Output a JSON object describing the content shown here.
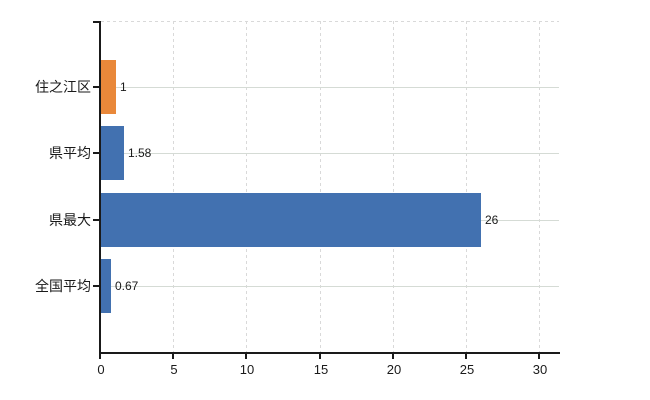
{
  "chart_data": {
    "type": "bar",
    "orientation": "horizontal",
    "title": "",
    "categories": [
      "住之江区",
      "県平均",
      "県最大",
      "全国平均"
    ],
    "values": [
      1,
      1.58,
      26,
      0.67
    ],
    "data_labels": [
      "1",
      "1.58",
      "26",
      "0.67"
    ],
    "bar_colors": [
      "#e9883a",
      "#4271b0",
      "#4271b0",
      "#4271b0"
    ],
    "x_tick_labels": [
      "0",
      "5",
      "10",
      "15",
      "20",
      "25",
      "30"
    ],
    "x_tick_values": [
      0,
      5,
      10,
      15,
      20,
      25,
      30
    ],
    "xlim": [
      0,
      31.3
    ],
    "grid": true,
    "legend": "none",
    "xlabel": "",
    "ylabel": ""
  },
  "colors": {
    "background": "#ffffff",
    "axis": "#1a1a1a",
    "grid_vertical_dashed": "#d9d9d9",
    "grid_horizontal_solid": "#d5dbd5",
    "text": "#1a1a1a",
    "highlight_bar": "#e9883a",
    "default_bar": "#4271b0"
  }
}
